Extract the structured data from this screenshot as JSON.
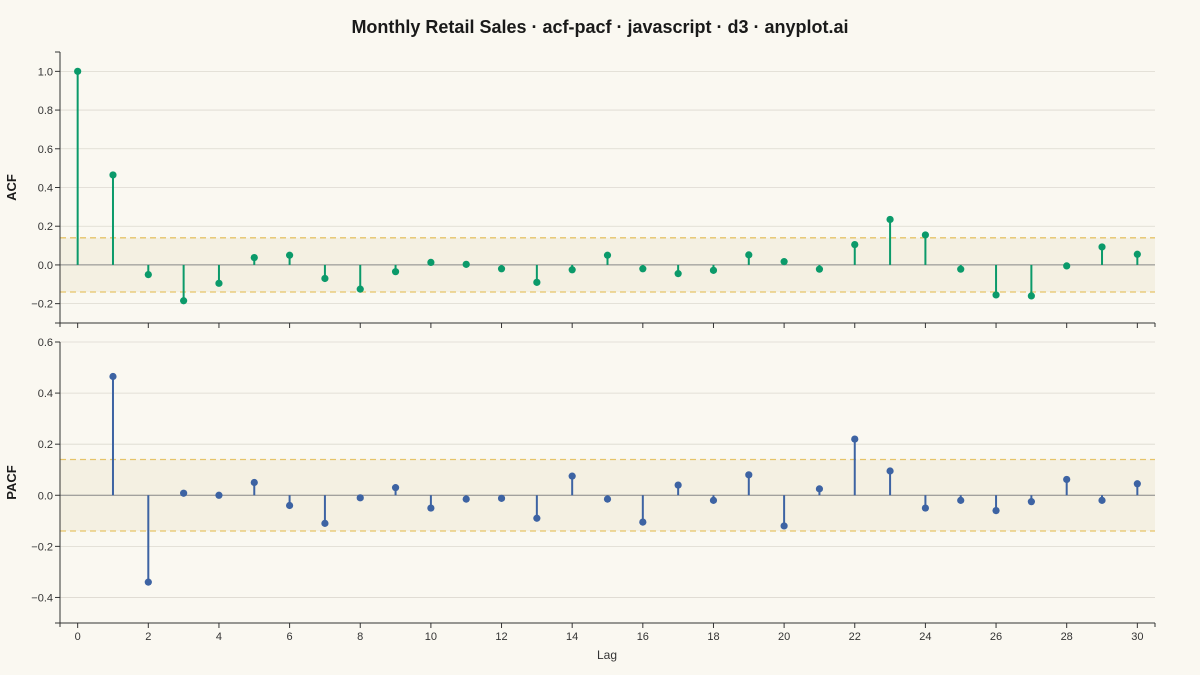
{
  "chart_data": {
    "type": "acf-pacf",
    "title": "Monthly Retail Sales · acf-pacf · javascript · d3 · anyplot.ai",
    "xlabel": "Lag",
    "xlim": [
      -0.5,
      30.5
    ],
    "x_ticks": [
      0,
      2,
      4,
      6,
      8,
      10,
      12,
      14,
      16,
      18,
      20,
      22,
      24,
      26,
      28,
      30
    ],
    "x_tick_labels": [
      "0",
      "2",
      "4",
      "6",
      "8",
      "10",
      "12",
      "14",
      "16",
      "18",
      "20",
      "22",
      "24",
      "26",
      "28",
      "30"
    ],
    "grid": true,
    "panels": [
      {
        "name": "ACF",
        "ylabel": "ACF",
        "color": "#0B9A6A",
        "ylim": [
          -0.3,
          1.1
        ],
        "y_ticks": [
          -0.2,
          0.0,
          0.2,
          0.4,
          0.6,
          0.8,
          1.0
        ],
        "y_tick_labels": [
          "−0.2",
          "0.0",
          "0.2",
          "0.4",
          "0.6",
          "0.8",
          "1.0"
        ],
        "confidence_bound": 0.14,
        "lags": [
          0,
          1,
          2,
          3,
          4,
          5,
          6,
          7,
          8,
          9,
          10,
          11,
          12,
          13,
          14,
          15,
          16,
          17,
          18,
          19,
          20,
          21,
          22,
          23,
          24,
          25,
          26,
          27,
          28,
          29,
          30
        ],
        "values": [
          1.0,
          0.465,
          -0.05,
          -0.185,
          -0.095,
          0.038,
          0.05,
          -0.07,
          -0.125,
          -0.035,
          0.013,
          0.003,
          -0.02,
          -0.09,
          -0.025,
          0.05,
          -0.02,
          -0.045,
          -0.028,
          0.052,
          0.017,
          -0.022,
          0.105,
          0.235,
          0.155,
          -0.022,
          -0.155,
          -0.16,
          -0.005,
          0.093,
          0.055
        ]
      },
      {
        "name": "PACF",
        "ylabel": "PACF",
        "color": "#3D63A3",
        "ylim": [
          -0.5,
          0.6
        ],
        "y_ticks": [
          -0.4,
          -0.2,
          0.0,
          0.2,
          0.4,
          0.6
        ],
        "y_tick_labels": [
          "−0.4",
          "−0.2",
          "0.0",
          "0.2",
          "0.4",
          "0.6"
        ],
        "confidence_bound": 0.14,
        "lags": [
          1,
          2,
          3,
          4,
          5,
          6,
          7,
          8,
          9,
          10,
          11,
          12,
          13,
          14,
          15,
          16,
          17,
          18,
          19,
          20,
          21,
          22,
          23,
          24,
          25,
          26,
          27,
          28,
          29,
          30
        ],
        "values": [
          0.465,
          -0.34,
          0.008,
          0.0,
          0.05,
          -0.04,
          -0.11,
          -0.01,
          0.03,
          -0.05,
          -0.015,
          -0.012,
          -0.09,
          0.075,
          -0.015,
          -0.105,
          0.04,
          -0.02,
          0.08,
          -0.12,
          0.025,
          0.22,
          0.095,
          -0.05,
          -0.02,
          -0.06,
          -0.025,
          0.062,
          -0.02,
          0.045
        ]
      }
    ]
  }
}
